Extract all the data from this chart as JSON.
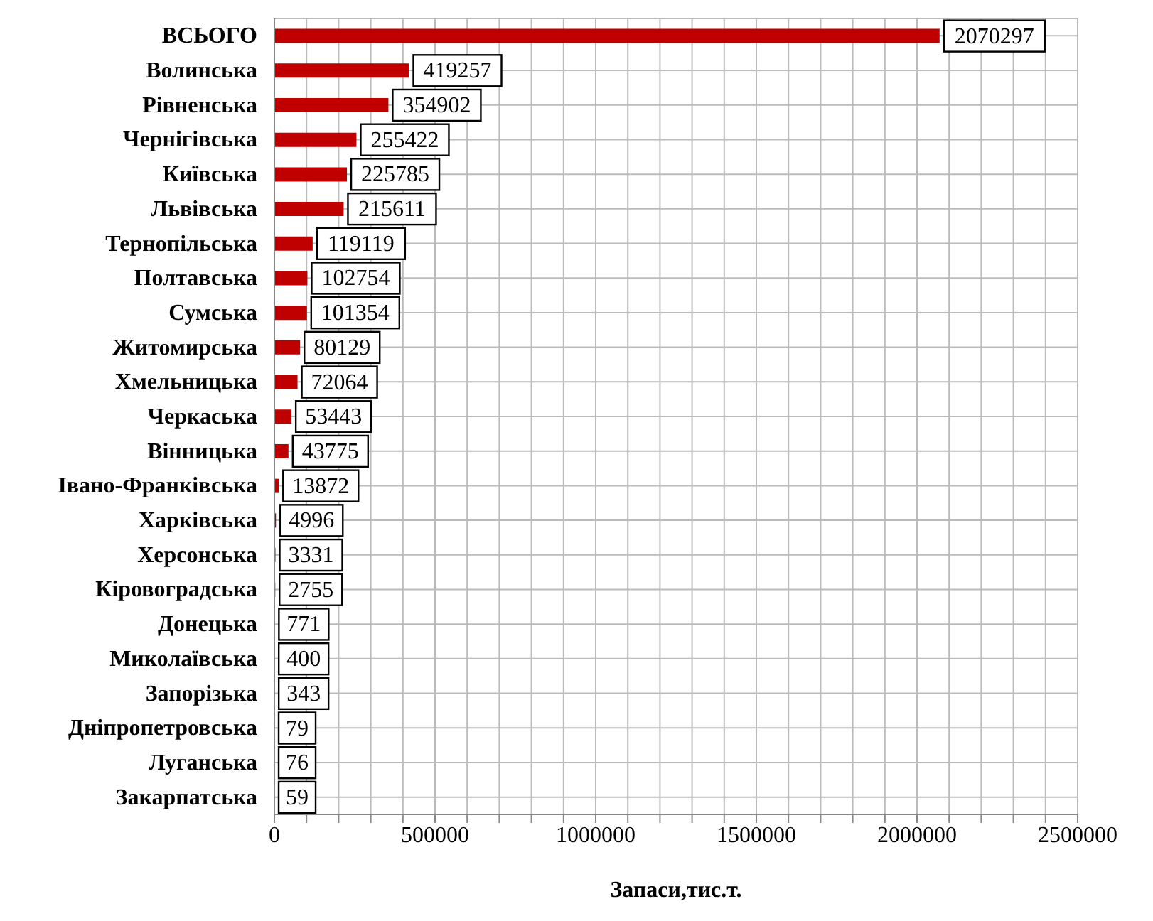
{
  "chart_data": {
    "type": "bar",
    "orientation": "horizontal",
    "xlabel": "Запаси,тис.т.",
    "categories": [
      "ВСЬОГО",
      "Волинська",
      "Рівненська",
      "Чернігівська",
      "Київська",
      "Львівська",
      "Тернопільська",
      "Полтавська",
      "Сумська",
      "Житомирська",
      "Хмельницька",
      "Черкаська",
      "Вінницька",
      "Івано-Франківська",
      "Харківська",
      "Херсонська",
      "Кіровоградська",
      "Донецька",
      "Миколаївська",
      "Запорізька",
      "Дніпропетровська",
      "Луганська",
      "Закарпатська"
    ],
    "values": [
      2070297,
      419257,
      354902,
      255422,
      225785,
      215611,
      119119,
      102754,
      101354,
      80129,
      72064,
      53443,
      43775,
      13872,
      4996,
      3331,
      2755,
      771,
      400,
      343,
      79,
      76,
      59
    ],
    "color": "#c00000",
    "data_labels": true,
    "grid": true,
    "xlim": [
      0,
      2500000
    ],
    "xticks": [
      0,
      {
        "value": 100000,
        "label": null
      },
      {
        "value": 200000,
        "label": null
      },
      {
        "value": 300000,
        "label": null
      },
      {
        "value": 400000,
        "label": null
      },
      500000,
      {
        "value": 600000,
        "label": null
      },
      {
        "value": 700000,
        "label": null
      },
      {
        "value": 800000,
        "label": null
      },
      {
        "value": 900000,
        "label": null
      },
      1000000,
      {
        "value": 1100000,
        "label": null
      },
      {
        "value": 1200000,
        "label": null
      },
      {
        "value": 1300000,
        "label": null
      },
      {
        "value": 1400000,
        "label": null
      },
      1500000,
      {
        "value": 1600000,
        "label": null
      },
      {
        "value": 1700000,
        "label": null
      },
      {
        "value": 1800000,
        "label": null
      },
      {
        "value": 1900000,
        "label": null
      },
      2000000,
      {
        "value": 2100000,
        "label": null
      },
      {
        "value": 2200000,
        "label": null
      },
      {
        "value": 2300000,
        "label": null
      },
      {
        "value": 2400000,
        "label": null
      },
      2500000
    ]
  }
}
